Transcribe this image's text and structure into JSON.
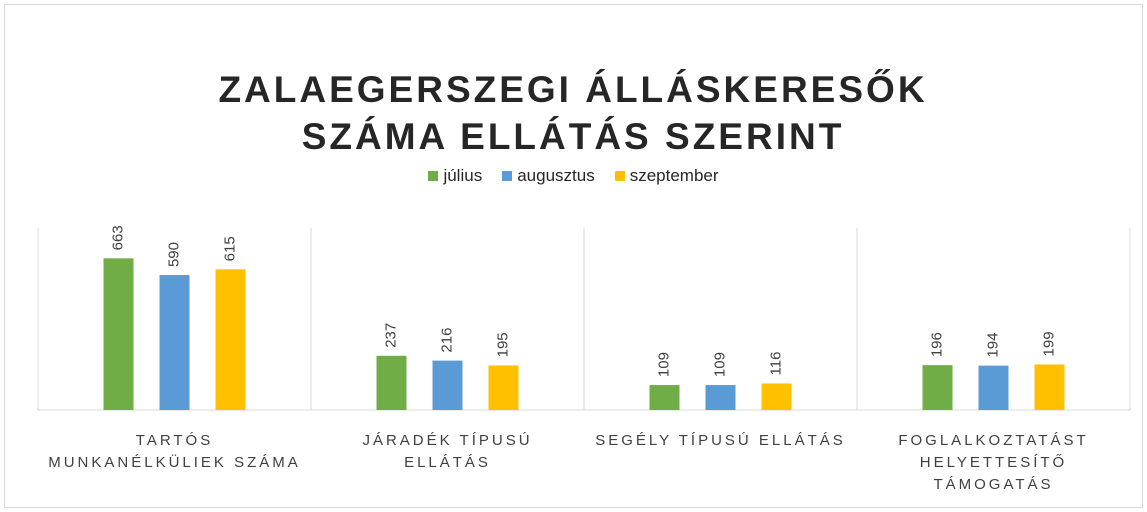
{
  "chart_data": {
    "type": "bar",
    "title": "ZALAEGERSZEGI ÁLLÁSKERESŐK SZÁMA ELLÁTÁS SZERINT",
    "categories": [
      "TARTÓS MUNKANÉLKÜLIEK SZÁMA",
      "JÁRADÉK TÍPUSÚ ELLÁTÁS",
      "SEGÉLY TÍPUSÚ ELLÁTÁS",
      "FOGLALKOZTATÁST HELYETTESÍTŐ TÁMOGATÁS"
    ],
    "series": [
      {
        "name": "július",
        "color": "#70ad47",
        "values": [
          663,
          237,
          109,
          196
        ]
      },
      {
        "name": "augusztus",
        "color": "#5b9bd5",
        "values": [
          590,
          216,
          109,
          194
        ]
      },
      {
        "name": "szeptember",
        "color": "#ffc000",
        "values": [
          615,
          195,
          116,
          199
        ]
      }
    ],
    "legend": "top"
  }
}
